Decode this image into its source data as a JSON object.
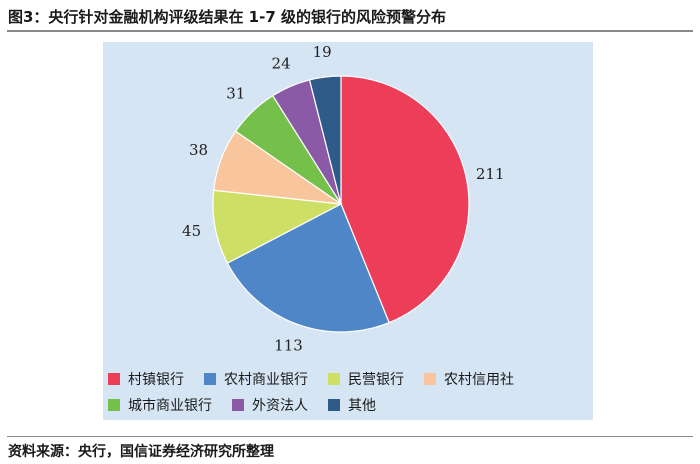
{
  "figure": {
    "title": "图3：央行针对金融机构评级结果在 1-7 级的银行的风险预警分布",
    "source": "资料来源：央行，国信证券经济研究所整理"
  },
  "chart_data": {
    "type": "pie",
    "title": "",
    "slices": [
      {
        "label": "村镇银行",
        "value": 211,
        "color": "#ec3e58"
      },
      {
        "label": "农村商业银行",
        "value": 113,
        "color": "#4e86c8"
      },
      {
        "label": "民营银行",
        "value": 45,
        "color": "#cde065"
      },
      {
        "label": "农村信用社",
        "value": 38,
        "color": "#f8c59c"
      },
      {
        "label": "城市商业银行",
        "value": 31,
        "color": "#74c04a"
      },
      {
        "label": "外资法人",
        "value": 24,
        "color": "#8b5aa6"
      },
      {
        "label": "其他",
        "value": 19,
        "color": "#2f5b89"
      }
    ],
    "legend_position": "bottom"
  }
}
